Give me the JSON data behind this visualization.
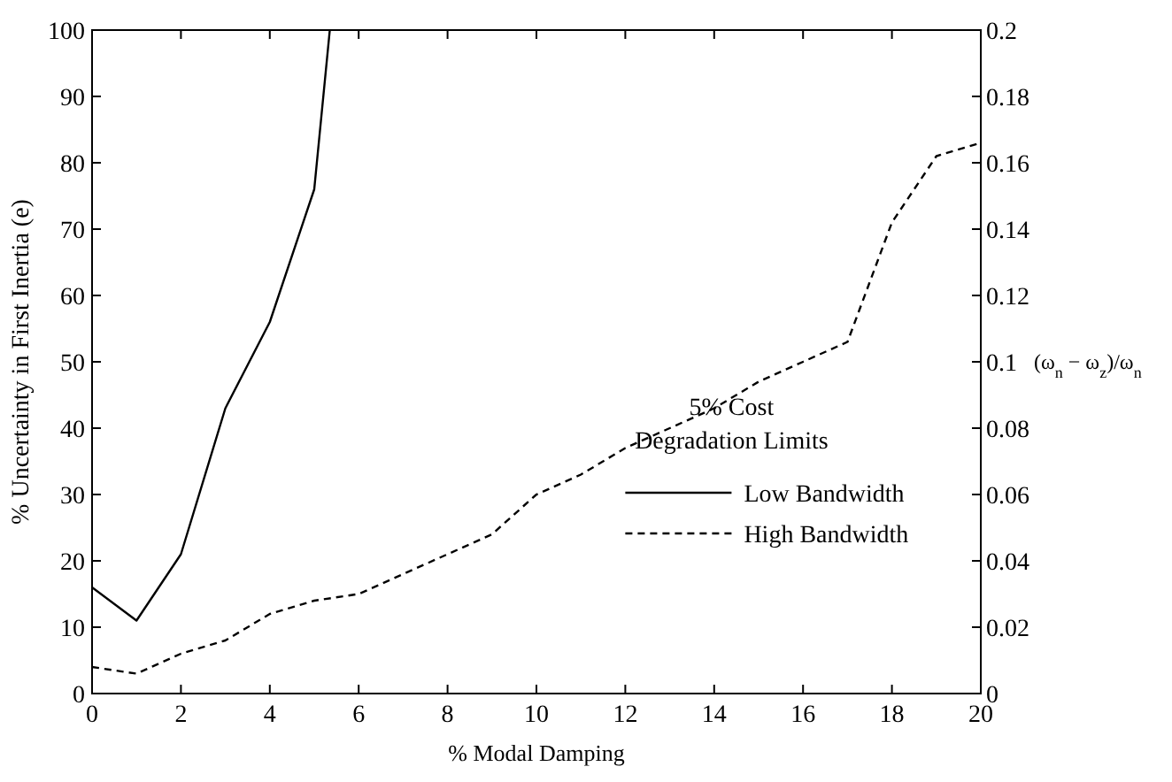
{
  "chart_data": {
    "type": "line",
    "xlabel": "% Modal Damping",
    "ylabel": "% Uncertainty in First Inertia (e)",
    "y2label": "(ω$_{n}$ − ω$_{z}$)/ω$_{n}$",
    "legend_title": "5% Cost Degradation Limits",
    "legend": "bottom right",
    "grid": false,
    "marker": "none",
    "xlim": [
      0,
      20
    ],
    "xticks": [
      0,
      2,
      4,
      6,
      8,
      10,
      12,
      14,
      16,
      18,
      20
    ],
    "ylim": [
      0,
      100
    ],
    "yticks": [
      0,
      10,
      20,
      30,
      40,
      50,
      60,
      70,
      80,
      90,
      100
    ],
    "y2lim": [
      0,
      0.2
    ],
    "y2ticks": [
      0,
      0.02,
      0.04,
      0.06,
      0.08,
      0.1,
      0.12,
      0.14,
      0.16,
      0.18,
      0.2
    ],
    "series": [
      {
        "name": "Low Bandwidth",
        "color": "#000000",
        "line_style": "solid",
        "x": [
          0,
          1,
          2,
          3,
          4,
          5,
          5.35
        ],
        "values": [
          16,
          11,
          21,
          43,
          56,
          76,
          100
        ]
      },
      {
        "name": "High Bandwidth",
        "color": "#000000",
        "line_style": "dashed",
        "axis": "y2",
        "x": [
          0,
          1,
          2,
          3,
          4,
          5,
          6,
          7,
          8,
          9,
          10,
          11,
          12,
          13,
          14,
          15,
          16,
          17,
          18,
          19,
          20
        ],
        "values": [
          0.008,
          0.006,
          0.012,
          0.016,
          0.024,
          0.028,
          0.03,
          0.036,
          0.042,
          0.048,
          0.06,
          0.066,
          0.074,
          0.08,
          0.086,
          0.094,
          0.1,
          0.106,
          0.142,
          0.162,
          0.166
        ]
      }
    ]
  }
}
